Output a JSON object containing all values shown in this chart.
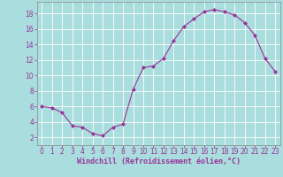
{
  "x": [
    0,
    1,
    2,
    3,
    4,
    5,
    6,
    7,
    8,
    9,
    10,
    11,
    12,
    13,
    14,
    15,
    16,
    17,
    18,
    19,
    20,
    21,
    22,
    23
  ],
  "y": [
    6,
    5.8,
    5.2,
    3.5,
    3.3,
    2.5,
    2.2,
    3.3,
    3.7,
    8.2,
    11.0,
    11.2,
    12.2,
    14.5,
    16.3,
    17.3,
    18.2,
    18.5,
    18.2,
    17.8,
    16.8,
    15.2,
    12.2,
    10.5
  ],
  "line_color": "#993399",
  "marker": "D",
  "marker_size": 2.0,
  "bg_color": "#aadddd",
  "grid_color": "#bbdddd",
  "xlabel": "Windchill (Refroidissement éolien,°C)",
  "xlabel_color": "#993399",
  "tick_color": "#993399",
  "spine_color": "#888888",
  "xlim": [
    -0.5,
    23.5
  ],
  "ylim": [
    1.0,
    19.5
  ],
  "yticks": [
    2,
    4,
    6,
    8,
    10,
    12,
    14,
    16,
    18
  ],
  "xticks": [
    0,
    1,
    2,
    3,
    4,
    5,
    6,
    7,
    8,
    9,
    10,
    11,
    12,
    13,
    14,
    15,
    16,
    17,
    18,
    19,
    20,
    21,
    22,
    23
  ],
  "tick_fontsize": 5.5,
  "xlabel_fontsize": 6.0
}
